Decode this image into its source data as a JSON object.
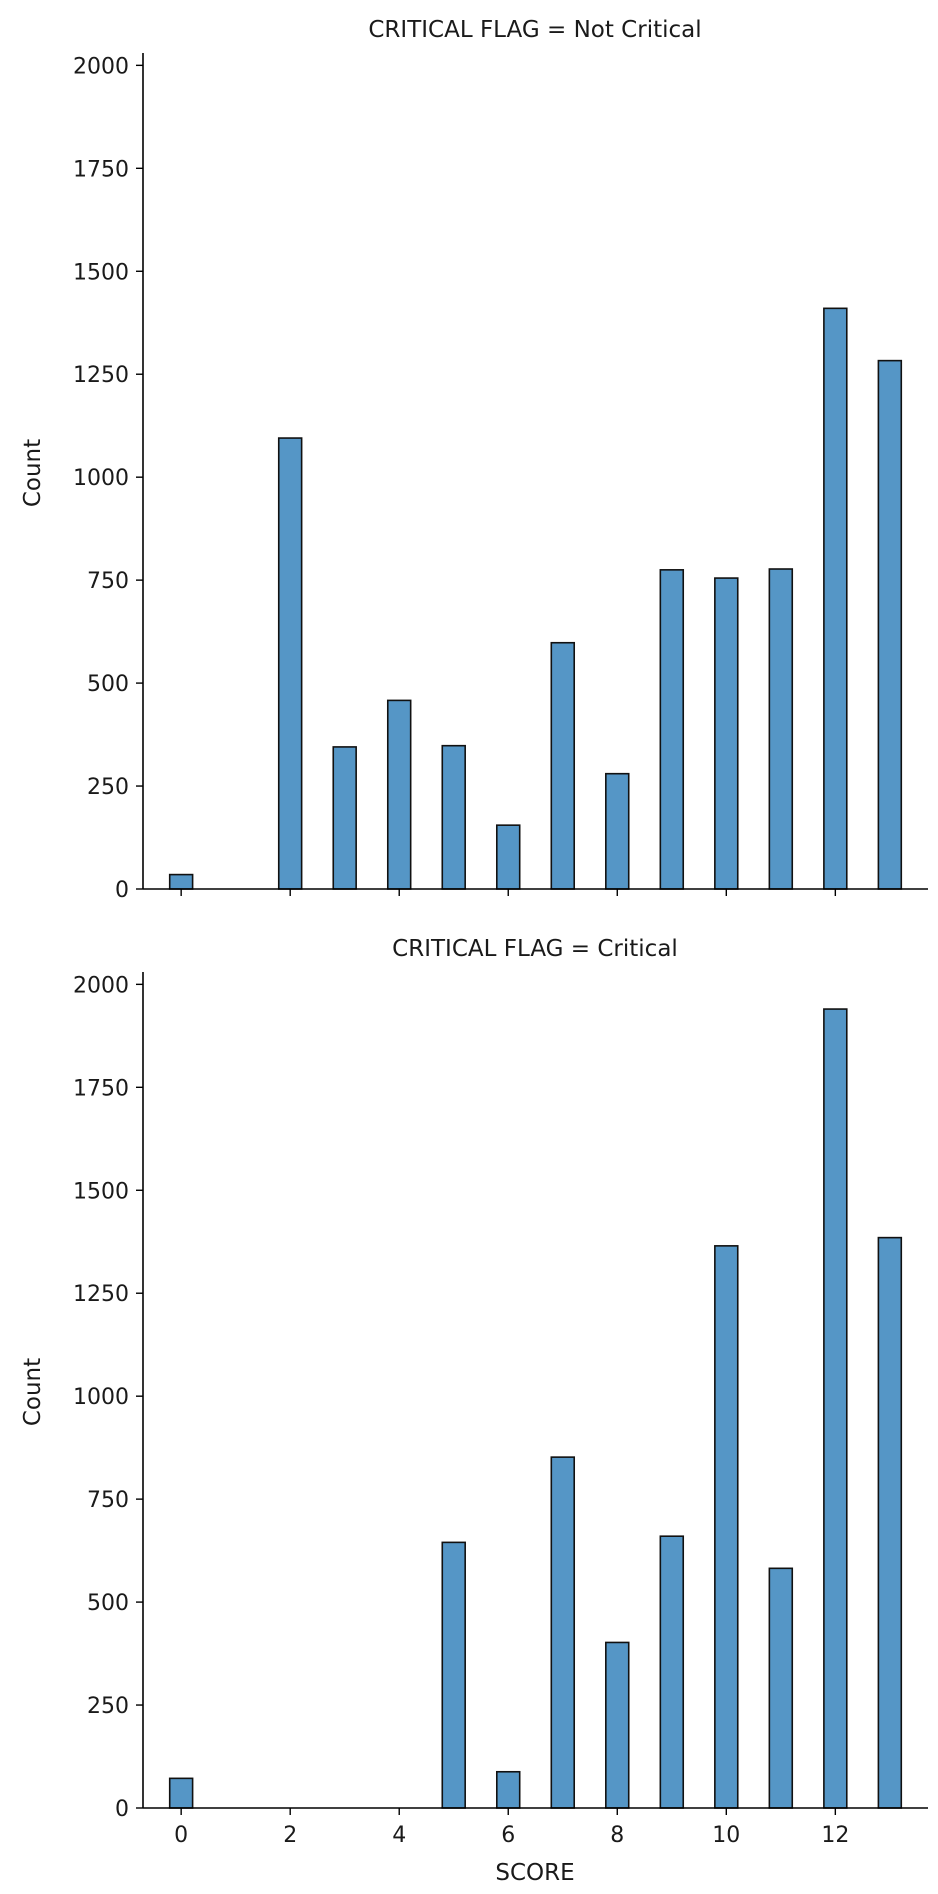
{
  "colors": {
    "bar_fill": "#5596c6",
    "bar_edge": "#111111"
  },
  "chart_data": [
    {
      "type": "bar",
      "title": "CRITICAL FLAG = Not Critical",
      "xlabel": "",
      "ylabel": "Count",
      "x": [
        0,
        2,
        3,
        4,
        5,
        6,
        7,
        8,
        9,
        10,
        11,
        12,
        13
      ],
      "values": [
        35,
        1095,
        345,
        458,
        348,
        155,
        598,
        280,
        775,
        755,
        777,
        1410,
        1283
      ],
      "xlim": [
        -0.7,
        13.7
      ],
      "ylim": [
        0,
        2030
      ],
      "xticks": [
        0,
        2,
        4,
        6,
        8,
        10,
        12
      ],
      "yticks": [
        0,
        250,
        500,
        750,
        1000,
        1250,
        1500,
        1750,
        2000
      ],
      "show_xtick_labels": false,
      "grid": false
    },
    {
      "type": "bar",
      "title": "CRITICAL FLAG = Critical",
      "xlabel": "SCORE",
      "ylabel": "Count",
      "x": [
        0,
        5,
        6,
        7,
        8,
        9,
        10,
        11,
        12,
        13
      ],
      "values": [
        72,
        645,
        88,
        852,
        402,
        660,
        1365,
        582,
        1940,
        1385
      ],
      "xlim": [
        -0.7,
        13.7
      ],
      "ylim": [
        0,
        2030
      ],
      "xticks": [
        0,
        2,
        4,
        6,
        8,
        10,
        12
      ],
      "yticks": [
        0,
        250,
        500,
        750,
        1000,
        1250,
        1500,
        1750,
        2000
      ],
      "show_xtick_labels": true,
      "grid": false
    }
  ]
}
